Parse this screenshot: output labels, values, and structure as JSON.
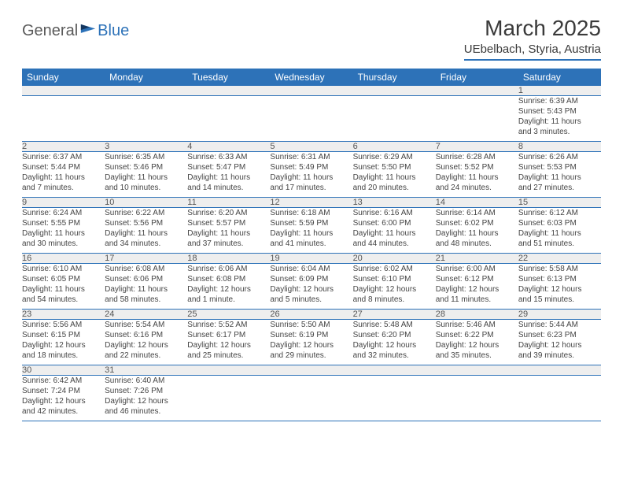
{
  "brand": {
    "general": "General",
    "blue": "Blue"
  },
  "title": "March 2025",
  "location": "UEbelbach, Styria, Austria",
  "colors": {
    "header_bg": "#2d72b8",
    "header_text": "#ffffff",
    "daynum_bg": "#eeeeee",
    "rule": "#2d72b8"
  },
  "weekdays": [
    "Sunday",
    "Monday",
    "Tuesday",
    "Wednesday",
    "Thursday",
    "Friday",
    "Saturday"
  ],
  "weeks": [
    {
      "nums": [
        "",
        "",
        "",
        "",
        "",
        "",
        "1"
      ],
      "cells": [
        null,
        null,
        null,
        null,
        null,
        null,
        {
          "sunrise": "Sunrise: 6:39 AM",
          "sunset": "Sunset: 5:43 PM",
          "day1": "Daylight: 11 hours",
          "day2": "and 3 minutes."
        }
      ]
    },
    {
      "nums": [
        "2",
        "3",
        "4",
        "5",
        "6",
        "7",
        "8"
      ],
      "cells": [
        {
          "sunrise": "Sunrise: 6:37 AM",
          "sunset": "Sunset: 5:44 PM",
          "day1": "Daylight: 11 hours",
          "day2": "and 7 minutes."
        },
        {
          "sunrise": "Sunrise: 6:35 AM",
          "sunset": "Sunset: 5:46 PM",
          "day1": "Daylight: 11 hours",
          "day2": "and 10 minutes."
        },
        {
          "sunrise": "Sunrise: 6:33 AM",
          "sunset": "Sunset: 5:47 PM",
          "day1": "Daylight: 11 hours",
          "day2": "and 14 minutes."
        },
        {
          "sunrise": "Sunrise: 6:31 AM",
          "sunset": "Sunset: 5:49 PM",
          "day1": "Daylight: 11 hours",
          "day2": "and 17 minutes."
        },
        {
          "sunrise": "Sunrise: 6:29 AM",
          "sunset": "Sunset: 5:50 PM",
          "day1": "Daylight: 11 hours",
          "day2": "and 20 minutes."
        },
        {
          "sunrise": "Sunrise: 6:28 AM",
          "sunset": "Sunset: 5:52 PM",
          "day1": "Daylight: 11 hours",
          "day2": "and 24 minutes."
        },
        {
          "sunrise": "Sunrise: 6:26 AM",
          "sunset": "Sunset: 5:53 PM",
          "day1": "Daylight: 11 hours",
          "day2": "and 27 minutes."
        }
      ]
    },
    {
      "nums": [
        "9",
        "10",
        "11",
        "12",
        "13",
        "14",
        "15"
      ],
      "cells": [
        {
          "sunrise": "Sunrise: 6:24 AM",
          "sunset": "Sunset: 5:55 PM",
          "day1": "Daylight: 11 hours",
          "day2": "and 30 minutes."
        },
        {
          "sunrise": "Sunrise: 6:22 AM",
          "sunset": "Sunset: 5:56 PM",
          "day1": "Daylight: 11 hours",
          "day2": "and 34 minutes."
        },
        {
          "sunrise": "Sunrise: 6:20 AM",
          "sunset": "Sunset: 5:57 PM",
          "day1": "Daylight: 11 hours",
          "day2": "and 37 minutes."
        },
        {
          "sunrise": "Sunrise: 6:18 AM",
          "sunset": "Sunset: 5:59 PM",
          "day1": "Daylight: 11 hours",
          "day2": "and 41 minutes."
        },
        {
          "sunrise": "Sunrise: 6:16 AM",
          "sunset": "Sunset: 6:00 PM",
          "day1": "Daylight: 11 hours",
          "day2": "and 44 minutes."
        },
        {
          "sunrise": "Sunrise: 6:14 AM",
          "sunset": "Sunset: 6:02 PM",
          "day1": "Daylight: 11 hours",
          "day2": "and 48 minutes."
        },
        {
          "sunrise": "Sunrise: 6:12 AM",
          "sunset": "Sunset: 6:03 PM",
          "day1": "Daylight: 11 hours",
          "day2": "and 51 minutes."
        }
      ]
    },
    {
      "nums": [
        "16",
        "17",
        "18",
        "19",
        "20",
        "21",
        "22"
      ],
      "cells": [
        {
          "sunrise": "Sunrise: 6:10 AM",
          "sunset": "Sunset: 6:05 PM",
          "day1": "Daylight: 11 hours",
          "day2": "and 54 minutes."
        },
        {
          "sunrise": "Sunrise: 6:08 AM",
          "sunset": "Sunset: 6:06 PM",
          "day1": "Daylight: 11 hours",
          "day2": "and 58 minutes."
        },
        {
          "sunrise": "Sunrise: 6:06 AM",
          "sunset": "Sunset: 6:08 PM",
          "day1": "Daylight: 12 hours",
          "day2": "and 1 minute."
        },
        {
          "sunrise": "Sunrise: 6:04 AM",
          "sunset": "Sunset: 6:09 PM",
          "day1": "Daylight: 12 hours",
          "day2": "and 5 minutes."
        },
        {
          "sunrise": "Sunrise: 6:02 AM",
          "sunset": "Sunset: 6:10 PM",
          "day1": "Daylight: 12 hours",
          "day2": "and 8 minutes."
        },
        {
          "sunrise": "Sunrise: 6:00 AM",
          "sunset": "Sunset: 6:12 PM",
          "day1": "Daylight: 12 hours",
          "day2": "and 11 minutes."
        },
        {
          "sunrise": "Sunrise: 5:58 AM",
          "sunset": "Sunset: 6:13 PM",
          "day1": "Daylight: 12 hours",
          "day2": "and 15 minutes."
        }
      ]
    },
    {
      "nums": [
        "23",
        "24",
        "25",
        "26",
        "27",
        "28",
        "29"
      ],
      "cells": [
        {
          "sunrise": "Sunrise: 5:56 AM",
          "sunset": "Sunset: 6:15 PM",
          "day1": "Daylight: 12 hours",
          "day2": "and 18 minutes."
        },
        {
          "sunrise": "Sunrise: 5:54 AM",
          "sunset": "Sunset: 6:16 PM",
          "day1": "Daylight: 12 hours",
          "day2": "and 22 minutes."
        },
        {
          "sunrise": "Sunrise: 5:52 AM",
          "sunset": "Sunset: 6:17 PM",
          "day1": "Daylight: 12 hours",
          "day2": "and 25 minutes."
        },
        {
          "sunrise": "Sunrise: 5:50 AM",
          "sunset": "Sunset: 6:19 PM",
          "day1": "Daylight: 12 hours",
          "day2": "and 29 minutes."
        },
        {
          "sunrise": "Sunrise: 5:48 AM",
          "sunset": "Sunset: 6:20 PM",
          "day1": "Daylight: 12 hours",
          "day2": "and 32 minutes."
        },
        {
          "sunrise": "Sunrise: 5:46 AM",
          "sunset": "Sunset: 6:22 PM",
          "day1": "Daylight: 12 hours",
          "day2": "and 35 minutes."
        },
        {
          "sunrise": "Sunrise: 5:44 AM",
          "sunset": "Sunset: 6:23 PM",
          "day1": "Daylight: 12 hours",
          "day2": "and 39 minutes."
        }
      ]
    },
    {
      "nums": [
        "30",
        "31",
        "",
        "",
        "",
        "",
        ""
      ],
      "cells": [
        {
          "sunrise": "Sunrise: 6:42 AM",
          "sunset": "Sunset: 7:24 PM",
          "day1": "Daylight: 12 hours",
          "day2": "and 42 minutes."
        },
        {
          "sunrise": "Sunrise: 6:40 AM",
          "sunset": "Sunset: 7:26 PM",
          "day1": "Daylight: 12 hours",
          "day2": "and 46 minutes."
        },
        null,
        null,
        null,
        null,
        null
      ]
    }
  ]
}
